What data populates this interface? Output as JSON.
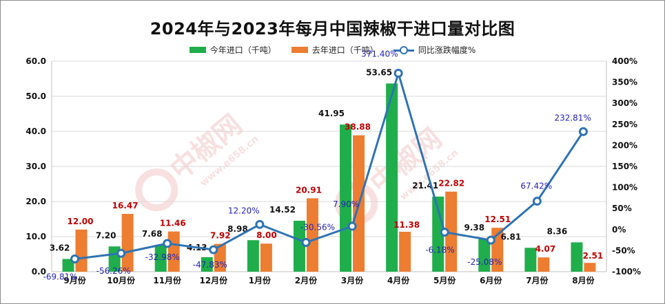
{
  "chart_data": {
    "type": "bar",
    "title": "2024年与2023年每月中国辣椒干进口量对比图",
    "categories": [
      "9月份",
      "10月份",
      "11月份",
      "12月份",
      "1月份",
      "2月份",
      "3月份",
      "4月份",
      "5月份",
      "6月份",
      "7月份",
      "8月份"
    ],
    "series": [
      {
        "name": "今年进口（千吨）",
        "type": "bar",
        "axis": "left",
        "color": "#1fae4b",
        "values": [
          3.62,
          7.2,
          7.68,
          4.13,
          8.98,
          14.52,
          41.95,
          53.65,
          21.41,
          9.38,
          6.81,
          8.36
        ],
        "labels": [
          "3.62",
          "7.20",
          "7.68",
          "4.13",
          "8.98",
          "14.52",
          "41.95",
          "53.65",
          "21.41",
          "9.38",
          "6.81",
          "8.36"
        ]
      },
      {
        "name": "去年进口（千吨）",
        "type": "bar",
        "axis": "left",
        "color": "#ed7d31",
        "values": [
          12.0,
          16.47,
          11.46,
          7.92,
          8.0,
          20.91,
          38.88,
          11.38,
          22.82,
          12.51,
          4.07,
          2.51
        ],
        "labels": [
          "12.00",
          "16.47",
          "11.46",
          "7.92",
          "8.00",
          "20.91",
          "38.88",
          "11.38",
          "22.82",
          "12.51",
          "4.07",
          "2.51"
        ]
      },
      {
        "name": "同比涨跌幅度%",
        "type": "line",
        "axis": "right",
        "color": "#2e73b3",
        "values": [
          -69.81,
          -56.26,
          -32.98,
          -47.83,
          12.2,
          -30.56,
          7.9,
          371.4,
          -6.18,
          -25.08,
          67.42,
          232.81
        ],
        "labels": [
          "-69.81%",
          "-56.26%",
          "-32.98%",
          "-47.83%",
          "12.20%",
          "-30.56%",
          "7.90%",
          "371.40%",
          "-6.18%",
          "-25.08%",
          "67.42%",
          "232.81%"
        ]
      }
    ],
    "y_left": {
      "min": 0,
      "max": 60,
      "ticks": [
        "0.0",
        "10.0",
        "20.0",
        "30.0",
        "40.0",
        "50.0",
        "60.0"
      ]
    },
    "y_right": {
      "min": -100,
      "max": 400,
      "ticks": [
        "-100%",
        "-50%",
        "0%",
        "50%",
        "100%",
        "150%",
        "200%",
        "250%",
        "300%",
        "350%",
        "400%"
      ]
    },
    "grid": true,
    "legend_position": "top"
  },
  "watermark": {
    "brand": "中椒网",
    "url": "www.e658.cn"
  }
}
